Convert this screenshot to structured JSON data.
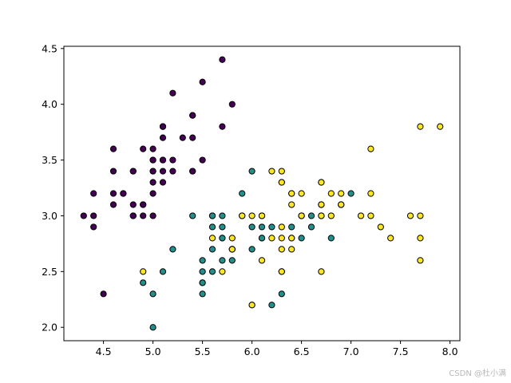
{
  "chart_data": {
    "type": "scatter",
    "title": "",
    "xlabel": "",
    "ylabel": "",
    "xlim": [
      4.1,
      8.1
    ],
    "ylim": [
      1.88,
      4.52
    ],
    "x_ticks": [
      4.5,
      5.0,
      5.5,
      6.0,
      6.5,
      7.0,
      7.5,
      8.0
    ],
    "x_tick_labels": [
      "4.5",
      "5.0",
      "5.5",
      "6.0",
      "6.5",
      "7.0",
      "7.5",
      "8.0"
    ],
    "y_ticks": [
      2.0,
      2.5,
      3.0,
      3.5,
      4.0,
      4.5
    ],
    "y_tick_labels": [
      "2.0",
      "2.5",
      "3.0",
      "3.5",
      "4.0",
      "4.5"
    ],
    "grid": false,
    "legend": "none",
    "series": [
      {
        "color": "#440154",
        "points": [
          [
            5.1,
            3.5
          ],
          [
            4.9,
            3.0
          ],
          [
            4.7,
            3.2
          ],
          [
            4.6,
            3.1
          ],
          [
            5.0,
            3.6
          ],
          [
            5.4,
            3.9
          ],
          [
            4.6,
            3.4
          ],
          [
            5.0,
            3.4
          ],
          [
            4.4,
            2.9
          ],
          [
            4.9,
            3.1
          ],
          [
            5.4,
            3.7
          ],
          [
            4.8,
            3.4
          ],
          [
            4.8,
            3.0
          ],
          [
            4.3,
            3.0
          ],
          [
            5.8,
            4.0
          ],
          [
            5.7,
            4.4
          ],
          [
            5.4,
            3.9
          ],
          [
            5.1,
            3.5
          ],
          [
            5.7,
            3.8
          ],
          [
            5.1,
            3.8
          ],
          [
            5.4,
            3.4
          ],
          [
            5.1,
            3.7
          ],
          [
            4.6,
            3.6
          ],
          [
            5.1,
            3.3
          ],
          [
            4.8,
            3.4
          ],
          [
            5.0,
            3.0
          ],
          [
            5.0,
            3.4
          ],
          [
            5.2,
            3.5
          ],
          [
            5.2,
            3.4
          ],
          [
            4.7,
            3.2
          ],
          [
            4.8,
            3.1
          ],
          [
            5.4,
            3.4
          ],
          [
            5.2,
            4.1
          ],
          [
            5.5,
            4.2
          ],
          [
            4.9,
            3.1
          ],
          [
            5.0,
            3.2
          ],
          [
            5.5,
            3.5
          ],
          [
            4.9,
            3.6
          ],
          [
            4.4,
            3.0
          ],
          [
            5.1,
            3.4
          ],
          [
            5.0,
            3.5
          ],
          [
            4.5,
            2.3
          ],
          [
            4.4,
            3.2
          ],
          [
            5.0,
            3.5
          ],
          [
            5.1,
            3.8
          ],
          [
            4.8,
            3.0
          ],
          [
            5.1,
            3.8
          ],
          [
            4.6,
            3.2
          ],
          [
            5.3,
            3.7
          ],
          [
            5.0,
            3.3
          ]
        ]
      },
      {
        "color": "#21908d",
        "points": [
          [
            7.0,
            3.2
          ],
          [
            6.4,
            3.2
          ],
          [
            6.9,
            3.1
          ],
          [
            5.5,
            2.3
          ],
          [
            6.5,
            2.8
          ],
          [
            5.7,
            2.8
          ],
          [
            6.3,
            3.3
          ],
          [
            4.9,
            2.4
          ],
          [
            6.6,
            2.9
          ],
          [
            5.2,
            2.7
          ],
          [
            5.0,
            2.0
          ],
          [
            5.9,
            3.0
          ],
          [
            6.0,
            2.2
          ],
          [
            6.1,
            2.9
          ],
          [
            5.6,
            2.9
          ],
          [
            6.7,
            3.1
          ],
          [
            5.6,
            3.0
          ],
          [
            5.8,
            2.7
          ],
          [
            6.2,
            2.2
          ],
          [
            5.6,
            2.5
          ],
          [
            5.9,
            3.2
          ],
          [
            6.1,
            2.8
          ],
          [
            6.3,
            2.5
          ],
          [
            6.1,
            2.8
          ],
          [
            6.4,
            2.9
          ],
          [
            6.6,
            3.0
          ],
          [
            6.8,
            2.8
          ],
          [
            6.7,
            3.0
          ],
          [
            6.0,
            2.9
          ],
          [
            5.7,
            2.6
          ],
          [
            5.5,
            2.4
          ],
          [
            5.5,
            2.4
          ],
          [
            5.8,
            2.7
          ],
          [
            6.0,
            2.7
          ],
          [
            5.4,
            3.0
          ],
          [
            6.0,
            3.4
          ],
          [
            6.7,
            3.1
          ],
          [
            6.3,
            2.3
          ],
          [
            5.6,
            3.0
          ],
          [
            5.5,
            2.5
          ],
          [
            5.5,
            2.6
          ],
          [
            6.1,
            3.0
          ],
          [
            5.8,
            2.6
          ],
          [
            5.0,
            2.3
          ],
          [
            5.6,
            2.7
          ],
          [
            5.7,
            3.0
          ],
          [
            5.7,
            2.9
          ],
          [
            6.2,
            2.9
          ],
          [
            5.1,
            2.5
          ],
          [
            5.7,
            2.8
          ]
        ]
      },
      {
        "color": "#fde725",
        "points": [
          [
            6.3,
            3.3
          ],
          [
            5.8,
            2.7
          ],
          [
            7.1,
            3.0
          ],
          [
            6.3,
            2.9
          ],
          [
            6.5,
            3.0
          ],
          [
            7.6,
            3.0
          ],
          [
            4.9,
            2.5
          ],
          [
            7.3,
            2.9
          ],
          [
            6.7,
            2.5
          ],
          [
            7.2,
            3.6
          ],
          [
            6.5,
            3.2
          ],
          [
            6.4,
            2.7
          ],
          [
            6.8,
            3.0
          ],
          [
            5.7,
            2.5
          ],
          [
            5.8,
            2.8
          ],
          [
            6.4,
            3.2
          ],
          [
            6.5,
            3.0
          ],
          [
            7.7,
            3.8
          ],
          [
            7.7,
            2.6
          ],
          [
            6.0,
            2.2
          ],
          [
            6.9,
            3.2
          ],
          [
            5.6,
            2.8
          ],
          [
            7.7,
            2.8
          ],
          [
            6.3,
            2.7
          ],
          [
            6.7,
            3.3
          ],
          [
            7.2,
            3.2
          ],
          [
            6.2,
            2.8
          ],
          [
            6.1,
            3.0
          ],
          [
            6.4,
            2.8
          ],
          [
            7.2,
            3.0
          ],
          [
            7.4,
            2.8
          ],
          [
            7.9,
            3.8
          ],
          [
            6.4,
            2.8
          ],
          [
            6.3,
            2.8
          ],
          [
            6.1,
            2.6
          ],
          [
            7.7,
            3.0
          ],
          [
            6.3,
            3.4
          ],
          [
            6.4,
            3.1
          ],
          [
            6.0,
            3.0
          ],
          [
            6.9,
            3.1
          ],
          [
            6.7,
            3.1
          ],
          [
            6.9,
            3.1
          ],
          [
            5.8,
            2.7
          ],
          [
            6.8,
            3.2
          ],
          [
            6.7,
            3.3
          ],
          [
            6.7,
            3.0
          ],
          [
            6.3,
            2.5
          ],
          [
            6.5,
            3.0
          ],
          [
            6.2,
            3.4
          ],
          [
            5.9,
            3.0
          ]
        ]
      }
    ]
  },
  "watermark": "CSDN @杜小满"
}
